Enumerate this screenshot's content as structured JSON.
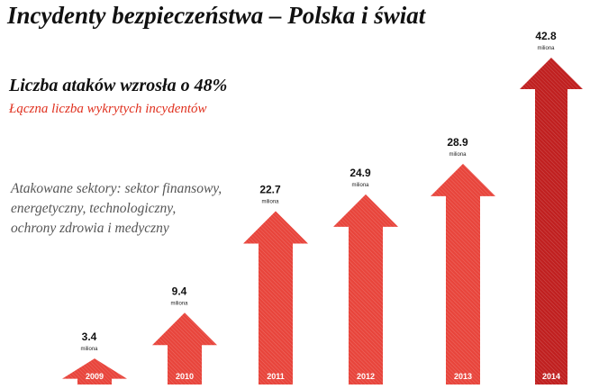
{
  "header": {
    "title": "Incydenty bezpieczeństwa – Polska i świat"
  },
  "headline": "Liczba ataków wzrosła o 48%",
  "caption": "Łączna liczba wykrytych incydentów",
  "sectors_note": "Atakowane sektory: sektor finansowy, energetyczny, technologiczny, ochrony zdrowia i medyczny",
  "colors": {
    "arrow_light": "#e8453c",
    "arrow_dark": "#c02020",
    "caption": "#e0301e"
  },
  "chart_data": {
    "type": "bar",
    "categories": [
      "2009",
      "2010",
      "2011",
      "2012",
      "2013",
      "2014"
    ],
    "values": [
      3.4,
      9.4,
      22.7,
      24.9,
      28.9,
      42.8
    ],
    "value_labels": [
      "3.4",
      "9.4",
      "22.7",
      "24.9",
      "28.9",
      "42.8"
    ],
    "unit_label": "miliona",
    "bar_shape": "up-arrow",
    "ylim": [
      0,
      42.8
    ],
    "grid": false
  }
}
